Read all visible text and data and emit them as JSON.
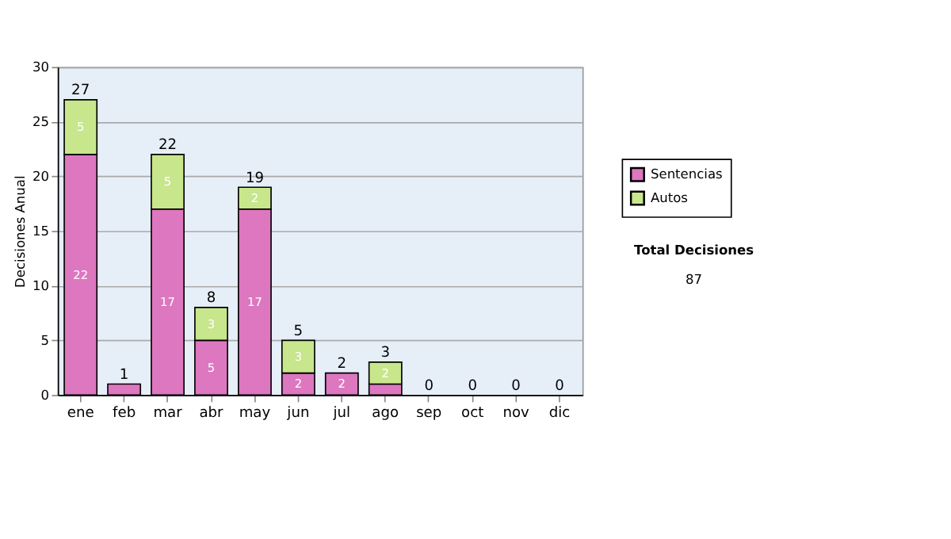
{
  "chart_data": {
    "type": "bar",
    "stacked": true,
    "ylabel": "Decisiones Anual",
    "categories": [
      "ene",
      "feb",
      "mar",
      "abr",
      "may",
      "jun",
      "jul",
      "ago",
      "sep",
      "oct",
      "nov",
      "dic"
    ],
    "series": [
      {
        "name": "Sentencias",
        "color": "#dd77c0",
        "values": [
          22,
          1,
          17,
          5,
          17,
          2,
          2,
          1,
          0,
          0,
          0,
          0
        ],
        "value_labels": [
          "22",
          null,
          "17",
          "5",
          "17",
          "2",
          "2",
          null,
          null,
          null,
          null,
          null
        ]
      },
      {
        "name": "Autos",
        "color": "#c8e68c",
        "values": [
          5,
          0,
          5,
          3,
          2,
          3,
          0,
          2,
          0,
          0,
          0,
          0
        ],
        "value_labels": [
          "5",
          null,
          "5",
          "3",
          "2",
          "3",
          null,
          "2",
          null,
          null,
          null,
          null
        ]
      }
    ],
    "totals": [
      "27",
      "1",
      "22",
      "8",
      "19",
      "5",
      "2",
      "3",
      "0",
      "0",
      "0",
      "0"
    ],
    "ylim": [
      0,
      30
    ],
    "yticks": [
      0,
      5,
      10,
      15,
      20,
      25,
      30
    ],
    "grid": "y",
    "legend": "right",
    "annotations": [
      "Total Decisiones",
      "87"
    ]
  }
}
